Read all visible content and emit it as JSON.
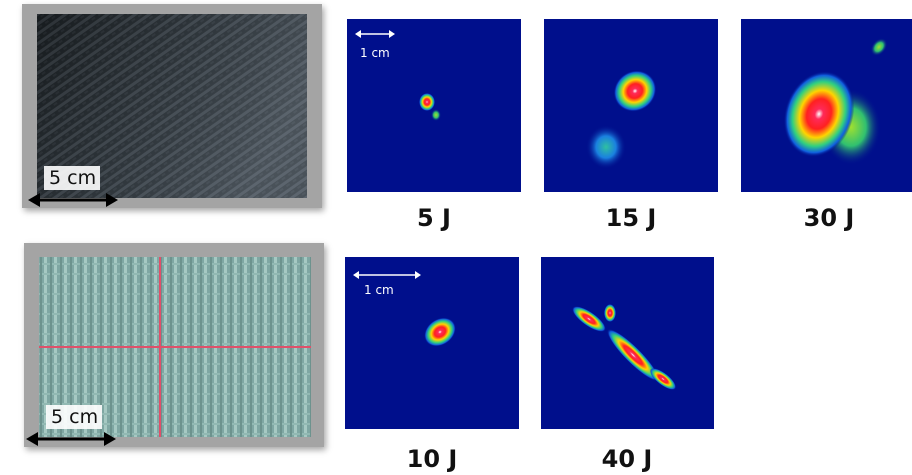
{
  "samples": [
    {
      "scale_label": "5 cm"
    },
    {
      "scale_label": "5 cm"
    }
  ],
  "thermograms": {
    "row1_scale_label": "1 cm",
    "row2_scale_label": "1 cm",
    "energies": [
      "5 J",
      "15 J",
      "30 J",
      "10 J",
      "40 J"
    ]
  },
  "colors": {
    "background_blue": "#000f8c",
    "frame_gray": "#a4a4a4"
  }
}
